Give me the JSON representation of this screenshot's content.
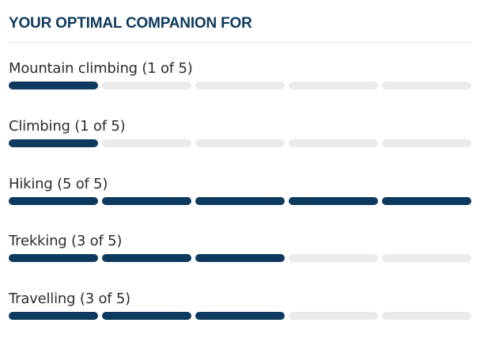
{
  "section": {
    "title": "YOUR OPTIMAL COMPANION FOR"
  },
  "colors": {
    "filled": "#0d3a5e",
    "empty": "#ebebeb",
    "title": "#0d3a5e",
    "label": "#2c2c2c"
  },
  "ratings": [
    {
      "label": "Mountain climbing (1 of 5)",
      "value": 1,
      "max": 5
    },
    {
      "label": "Climbing (1 of 5)",
      "value": 1,
      "max": 5
    },
    {
      "label": "Hiking (5 of 5)",
      "value": 5,
      "max": 5
    },
    {
      "label": "Trekking (3 of 5)",
      "value": 3,
      "max": 5
    },
    {
      "label": "Travelling (3 of 5)",
      "value": 3,
      "max": 5
    }
  ]
}
